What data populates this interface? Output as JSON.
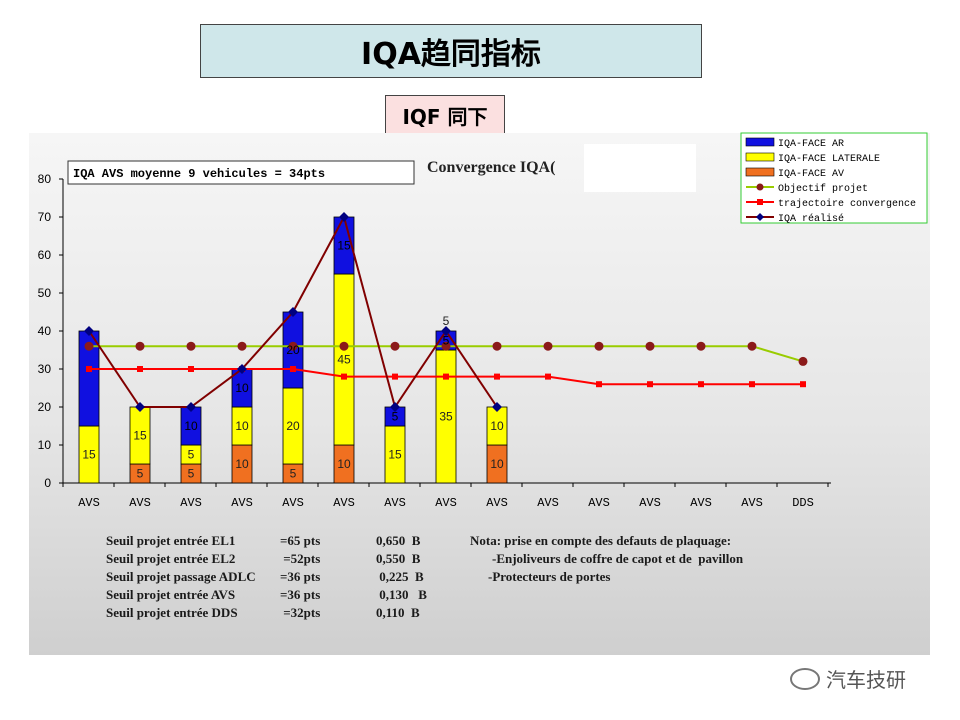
{
  "header": {
    "title": "IQA趋同指标",
    "subtitle": "IQF 同下"
  },
  "info_box": "IQA AVS moyenne 9 vehicules = 34pts",
  "chart_data": {
    "type": "bar",
    "title": "Convergence IQA(",
    "categories": [
      "AVS",
      "AVS",
      "AVS",
      "AVS",
      "AVS",
      "AVS",
      "AVS",
      "AVS",
      "AVS",
      "AVS",
      "AVS",
      "AVS",
      "AVS",
      "AVS",
      "DDS"
    ],
    "ylim": [
      0,
      80
    ],
    "yticks": [
      0,
      10,
      20,
      30,
      40,
      50,
      60,
      70,
      80
    ],
    "stacked_series": [
      {
        "name": "IQA-FACE AV",
        "color": "#f07020",
        "values": [
          0,
          5,
          5,
          10,
          5,
          10,
          0,
          0,
          10
        ]
      },
      {
        "name": "IQA-FACE LATERALE",
        "color": "#ffff00",
        "values": [
          15,
          15,
          5,
          10,
          20,
          45,
          15,
          35,
          10
        ]
      },
      {
        "name": "IQA-FACE AR",
        "color": "#1010e0",
        "values": [
          25,
          0,
          10,
          10,
          20,
          15,
          5,
          5,
          0
        ]
      }
    ],
    "bar_labels": {
      "IQA-FACE AV": [
        "",
        "5",
        "5",
        "10",
        "5",
        "10",
        "",
        "",
        "10"
      ],
      "IQA-FACE LATERALE": [
        "15",
        "15",
        "5",
        "10",
        "20",
        "45",
        "15",
        "35",
        "10"
      ],
      "IQA-FACE AR": [
        "",
        "",
        "10",
        "10",
        "20",
        "15",
        "5",
        "5",
        ""
      ]
    },
    "line_series": [
      {
        "name": "Objectif projet",
        "color": "#99cc00",
        "marker_color": "#8b1a1a",
        "marker": "circle",
        "values": [
          36,
          36,
          36,
          36,
          36,
          36,
          36,
          36,
          36,
          36,
          36,
          36,
          36,
          36,
          32
        ]
      },
      {
        "name": "trajectoire convergence",
        "color": "#ff0000",
        "marker_color": "#ff0000",
        "marker": "square",
        "values": [
          30,
          30,
          30,
          30,
          30,
          28,
          28,
          28,
          28,
          28,
          26,
          26,
          26,
          26,
          26
        ]
      },
      {
        "name": "IQA réalisé",
        "color": "#800000",
        "marker_color": "#000080",
        "marker": "diamond",
        "values": [
          40,
          20,
          20,
          30,
          45,
          70,
          20,
          40,
          20
        ]
      }
    ],
    "legend": [
      "IQA-FACE AR",
      "IQA-FACE LATERALE",
      "IQA-FACE AV",
      "Objectif projet",
      "trajectoire convergence",
      "IQA réalisé"
    ],
    "legend_position": "top-right"
  },
  "notes_left": [
    {
      "label": "Seuil projet entrée EL1",
      "value": "=65 pts",
      "ratio": "0,650  B"
    },
    {
      "label": "Seuil projet entrée EL2",
      "value": " =52pts",
      "ratio": "0,550  B"
    },
    {
      "label": "Seuil projet passage ADLC",
      "value": "=36 pts",
      "ratio": " 0,225  B"
    },
    {
      "label": "Seuil projet entrée AVS",
      "value": "=36 pts",
      "ratio": " 0,130   B"
    },
    {
      "label": "Seuil projet entrée DDS",
      "value": " =32pts",
      "ratio": "0,110  B"
    }
  ],
  "notes_right": [
    "Nota: prise en compte des defauts de plaquage:",
    "-Enjoliveurs de coffre de capot et de  pavillon",
    "-Protecteurs de portes"
  ],
  "watermark": "汽车技研"
}
